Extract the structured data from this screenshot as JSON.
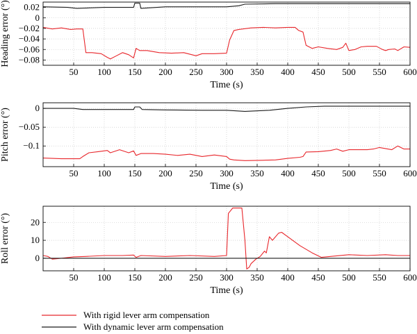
{
  "colors": {
    "rigid": "#e8262b",
    "dynamic": "#1a1a1a",
    "grid": "#bfbfbf"
  },
  "legend": {
    "rigid_label": "With rigid lever arm compensation",
    "dynamic_label": "With dynamic lever arm compensation"
  },
  "chart_data": [
    {
      "type": "line",
      "ylabel": "Heading error (°)",
      "xlabel": "Time (s)",
      "xlim": [
        0,
        600
      ],
      "ylim": [
        -0.09,
        0.03
      ],
      "xticks": [
        50,
        100,
        150,
        200,
        250,
        300,
        350,
        400,
        450,
        500,
        550,
        600
      ],
      "yticks": [
        0.02,
        0,
        -0.02,
        -0.04,
        -0.06,
        -0.08
      ],
      "ytick_labels": [
        "0.02",
        "0",
        "−0.02",
        "−0.04",
        "−0.06",
        "−0.08"
      ],
      "grid": true,
      "series": [
        {
          "name": "With rigid lever arm compensation",
          "color": "rigid",
          "x": [
            0,
            15,
            30,
            45,
            55,
            65,
            70,
            80,
            95,
            105,
            110,
            120,
            130,
            140,
            148,
            152,
            158,
            170,
            190,
            210,
            230,
            250,
            260,
            280,
            300,
            305,
            312,
            320,
            340,
            360,
            380,
            400,
            412,
            418,
            425,
            430,
            440,
            450,
            465,
            480,
            490,
            495,
            500,
            510,
            520,
            530,
            545,
            555,
            560,
            565,
            575,
            580,
            590,
            600
          ],
          "y": [
            -0.018,
            -0.021,
            -0.019,
            -0.022,
            -0.021,
            -0.021,
            -0.066,
            -0.066,
            -0.068,
            -0.075,
            -0.078,
            -0.072,
            -0.066,
            -0.07,
            -0.076,
            -0.058,
            -0.062,
            -0.062,
            -0.066,
            -0.067,
            -0.066,
            -0.072,
            -0.068,
            -0.068,
            -0.067,
            -0.042,
            -0.024,
            -0.022,
            -0.019,
            -0.018,
            -0.019,
            -0.018,
            -0.018,
            -0.024,
            -0.027,
            -0.052,
            -0.058,
            -0.055,
            -0.058,
            -0.06,
            -0.056,
            -0.048,
            -0.062,
            -0.06,
            -0.055,
            -0.054,
            -0.054,
            -0.06,
            -0.062,
            -0.06,
            -0.059,
            -0.062,
            -0.055,
            -0.056
          ]
        },
        {
          "name": "With dynamic lever arm compensation",
          "color": "dynamic",
          "x": [
            0,
            40,
            55,
            100,
            148,
            150,
            158,
            160,
            200,
            260,
            300,
            320,
            330,
            380,
            450,
            520,
            600
          ],
          "y": [
            0.021,
            0.02,
            0.018,
            0.02,
            0.02,
            0.028,
            0.028,
            0.018,
            0.021,
            0.021,
            0.021,
            0.023,
            0.026,
            0.027,
            0.027,
            0.027,
            0.027
          ]
        }
      ]
    },
    {
      "type": "line",
      "ylabel": "Pitch error (°)",
      "xlabel": "Time (s)",
      "xlim": [
        0,
        600
      ],
      "ylim": [
        -0.155,
        0.015
      ],
      "xticks": [
        50,
        100,
        150,
        200,
        250,
        300,
        350,
        400,
        450,
        500,
        550,
        600
      ],
      "yticks": [
        0,
        -0.05,
        -0.1
      ],
      "ytick_labels": [
        "0",
        "−0.05",
        "−0.1"
      ],
      "grid": true,
      "series": [
        {
          "name": "With rigid lever arm compensation",
          "color": "rigid",
          "x": [
            0,
            30,
            60,
            65,
            75,
            90,
            105,
            110,
            125,
            140,
            148,
            152,
            160,
            180,
            200,
            220,
            240,
            260,
            280,
            300,
            305,
            312,
            330,
            360,
            380,
            400,
            420,
            425,
            430,
            450,
            470,
            480,
            490,
            500,
            530,
            540,
            550,
            570,
            580,
            590,
            600
          ],
          "y": [
            -0.132,
            -0.134,
            -0.134,
            -0.128,
            -0.118,
            -0.115,
            -0.112,
            -0.118,
            -0.11,
            -0.118,
            -0.113,
            -0.125,
            -0.12,
            -0.12,
            -0.122,
            -0.125,
            -0.122,
            -0.128,
            -0.124,
            -0.128,
            -0.135,
            -0.137,
            -0.139,
            -0.138,
            -0.137,
            -0.133,
            -0.13,
            -0.128,
            -0.116,
            -0.115,
            -0.112,
            -0.108,
            -0.114,
            -0.11,
            -0.11,
            -0.108,
            -0.104,
            -0.11,
            -0.1,
            -0.108,
            -0.108
          ]
        },
        {
          "name": "With dynamic lever arm compensation",
          "color": "dynamic",
          "x": [
            0,
            50,
            65,
            100,
            148,
            150,
            158,
            162,
            200,
            260,
            300,
            330,
            370,
            400,
            430,
            460,
            520,
            600
          ],
          "y": [
            0.0,
            0.0,
            -0.003,
            -0.003,
            -0.003,
            0.004,
            0.004,
            -0.003,
            -0.004,
            -0.005,
            -0.005,
            -0.008,
            -0.005,
            0.0,
            0.004,
            0.006,
            0.006,
            0.006
          ]
        }
      ]
    },
    {
      "type": "line",
      "ylabel": "Roll error (°)",
      "xlabel": "Time (s)",
      "xlim": [
        0,
        600
      ],
      "ylim": [
        -7,
        29
      ],
      "xticks": [
        50,
        100,
        150,
        200,
        250,
        300,
        350,
        400,
        450,
        500,
        550,
        600
      ],
      "yticks": [
        20,
        10,
        0
      ],
      "ytick_labels": [
        "20",
        "10",
        "0"
      ],
      "grid": true,
      "series": [
        {
          "name": "With rigid lever arm compensation",
          "color": "rigid",
          "x": [
            0,
            8,
            15,
            30,
            50,
            70,
            100,
            130,
            148,
            152,
            160,
            200,
            240,
            280,
            300,
            303,
            310,
            315,
            325,
            330,
            333,
            337,
            340,
            348,
            355,
            362,
            365,
            370,
            375,
            385,
            390,
            400,
            420,
            440,
            455,
            470,
            500,
            530,
            560,
            580,
            600
          ],
          "y": [
            1.5,
            1.0,
            -0.5,
            0.0,
            0.8,
            1.0,
            1.5,
            1.5,
            1.8,
            0.5,
            1.5,
            1.0,
            1.5,
            1.0,
            1.5,
            25.0,
            28.0,
            28.0,
            28.0,
            10.0,
            -6.0,
            -5.0,
            -3.0,
            -0.5,
            1.0,
            4.0,
            3.0,
            12.0,
            10.0,
            14.0,
            14.5,
            12.0,
            7.0,
            3.0,
            0.5,
            1.0,
            2.0,
            1.5,
            2.0,
            1.5,
            1.5
          ]
        },
        {
          "name": "With dynamic lever arm compensation",
          "color": "dynamic",
          "x": [
            0,
            600
          ],
          "y": [
            0,
            0
          ]
        }
      ]
    }
  ]
}
